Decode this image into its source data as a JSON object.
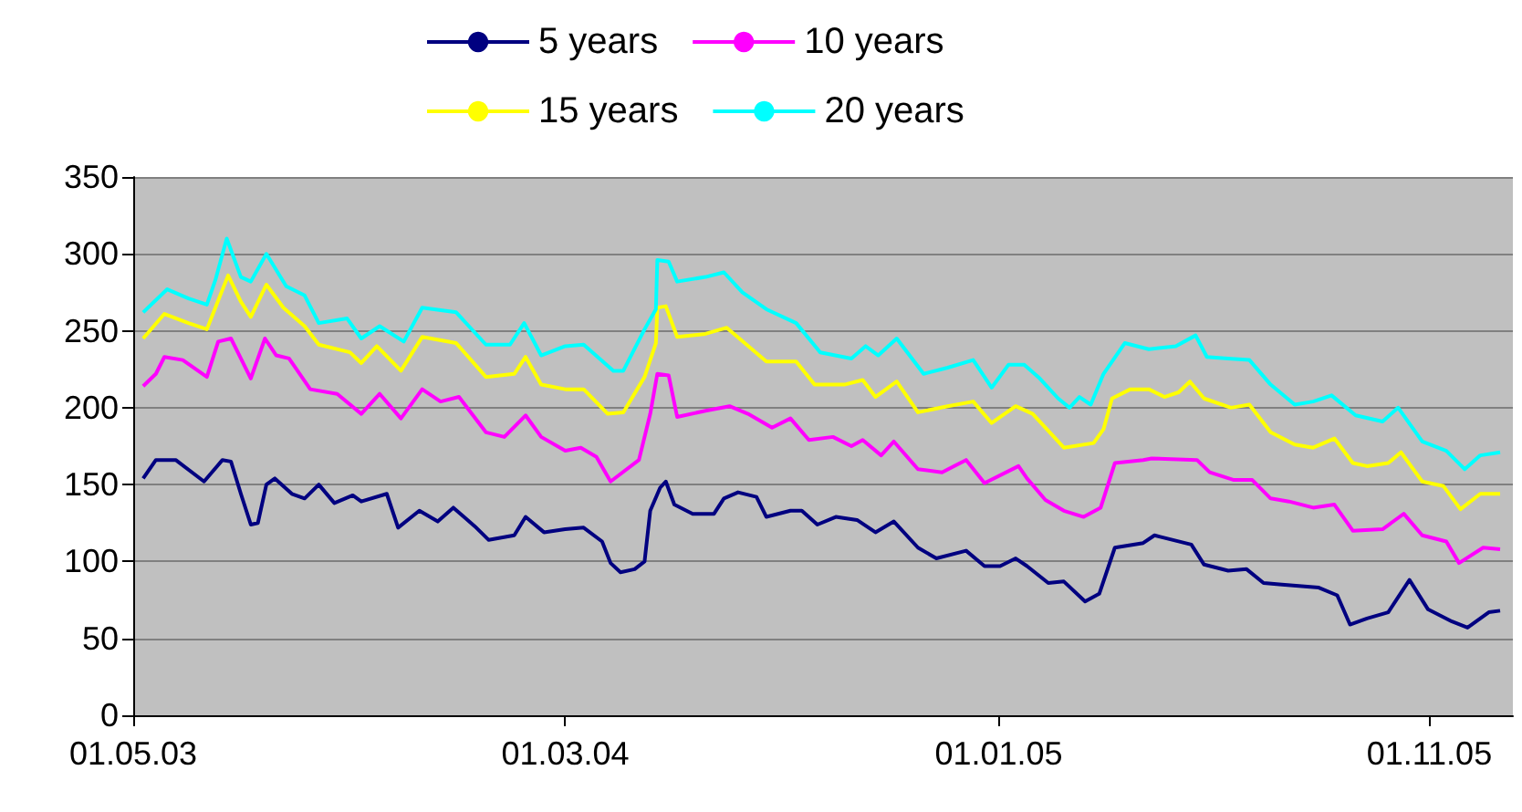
{
  "chart_data": {
    "type": "line",
    "xlim": [
      "2003-05-01",
      "2005-12-30"
    ],
    "xticks": [
      {
        "value": "2003-05-01",
        "label": "01.05.03"
      },
      {
        "value": "2004-03-01",
        "label": "01.03.04"
      },
      {
        "value": "2005-01-01",
        "label": "01.01.05"
      },
      {
        "value": "2005-11-01",
        "label": "01.11.05"
      }
    ],
    "ylim": [
      0,
      350
    ],
    "yticks": [
      0,
      50,
      100,
      150,
      200,
      250,
      300,
      350
    ],
    "grid": "y",
    "legend": "top",
    "series": [
      {
        "name": "5 years",
        "color": "#000080",
        "x": [
          "2003-05-08",
          "2003-05-17",
          "2003-05-31",
          "2003-06-20",
          "2003-07-03",
          "2003-07-09",
          "2003-07-16",
          "2003-07-23",
          "2003-07-28",
          "2003-08-03",
          "2003-08-09",
          "2003-08-21",
          "2003-08-30",
          "2003-09-09",
          "2003-09-20",
          "2003-10-03",
          "2003-10-09",
          "2003-10-27",
          "2003-11-04",
          "2003-11-19",
          "2003-12-02",
          "2003-12-13",
          "2003-12-28",
          "2004-01-07",
          "2004-01-25",
          "2004-02-02",
          "2004-02-15",
          "2004-03-01",
          "2004-03-14",
          "2004-03-27",
          "2004-04-02",
          "2004-04-09",
          "2004-04-19",
          "2004-04-26",
          "2004-04-30",
          "2004-05-07",
          "2004-05-11",
          "2004-05-17",
          "2004-05-30",
          "2004-06-14",
          "2004-06-21",
          "2004-07-01",
          "2004-07-14",
          "2004-07-21",
          "2004-08-07",
          "2004-08-15",
          "2004-08-26",
          "2004-09-08",
          "2004-09-23",
          "2004-10-06",
          "2004-10-19",
          "2004-11-05",
          "2004-11-18",
          "2004-12-09",
          "2004-12-22",
          "2005-01-02",
          "2005-01-13",
          "2005-01-21",
          "2005-02-05",
          "2005-02-16",
          "2005-03-03",
          "2005-03-13",
          "2005-03-24",
          "2005-04-13",
          "2005-04-21",
          "2005-05-17",
          "2005-05-26",
          "2005-06-12",
          "2005-06-25",
          "2005-07-07",
          "2005-07-20",
          "2005-08-15",
          "2005-08-28",
          "2005-09-06",
          "2005-09-18",
          "2005-10-03",
          "2005-10-18",
          "2005-10-31",
          "2005-11-17",
          "2005-11-28",
          "2005-12-13",
          "2005-12-21"
        ],
        "values": [
          154,
          166,
          166,
          152,
          166,
          165,
          144,
          124,
          125,
          150,
          154,
          144,
          141,
          150,
          138,
          143,
          139,
          144,
          122,
          133,
          126,
          135,
          123,
          114,
          117,
          129,
          119,
          121,
          122,
          113,
          99,
          93,
          95,
          100,
          133,
          148,
          152,
          137,
          131,
          131,
          141,
          145,
          142,
          129,
          133,
          133,
          124,
          129,
          127,
          119,
          126,
          109,
          102,
          107,
          97,
          97,
          102,
          97,
          86,
          87,
          74,
          79,
          109,
          112,
          117,
          111,
          98,
          94,
          95,
          86,
          85,
          83,
          78,
          59,
          63,
          67,
          88,
          69,
          61,
          57,
          67,
          68
        ]
      },
      {
        "name": "10 years",
        "color": "#ff00ff",
        "x": [
          "2003-05-08",
          "2003-05-17",
          "2003-05-23",
          "2003-06-05",
          "2003-06-22",
          "2003-06-30",
          "2003-07-09",
          "2003-07-23",
          "2003-08-02",
          "2003-08-10",
          "2003-08-19",
          "2003-09-03",
          "2003-09-22",
          "2003-10-09",
          "2003-10-22",
          "2003-11-06",
          "2003-11-21",
          "2003-12-04",
          "2003-12-17",
          "2004-01-05",
          "2004-01-18",
          "2004-02-02",
          "2004-02-13",
          "2004-03-01",
          "2004-03-12",
          "2004-03-23",
          "2004-04-02",
          "2004-04-22",
          "2004-04-30",
          "2004-05-05",
          "2004-05-13",
          "2004-05-19",
          "2004-06-08",
          "2004-06-25",
          "2004-07-08",
          "2004-07-25",
          "2004-08-07",
          "2004-08-20",
          "2004-09-06",
          "2004-09-19",
          "2004-09-27",
          "2004-10-10",
          "2004-10-19",
          "2004-11-05",
          "2004-11-22",
          "2004-12-09",
          "2004-12-22",
          "2005-01-15",
          "2005-01-21",
          "2005-02-03",
          "2005-02-16",
          "2005-03-02",
          "2005-03-14",
          "2005-03-24",
          "2005-04-13",
          "2005-04-19",
          "2005-05-21",
          "2005-05-30",
          "2005-06-16",
          "2005-06-29",
          "2005-07-12",
          "2005-07-25",
          "2005-08-11",
          "2005-08-26",
          "2005-09-08",
          "2005-09-29",
          "2005-10-14",
          "2005-10-27",
          "2005-11-13",
          "2005-11-22",
          "2005-12-09",
          "2005-12-21"
        ],
        "values": [
          214,
          222,
          233,
          231,
          220,
          243,
          245,
          219,
          245,
          234,
          232,
          212,
          209,
          196,
          209,
          193,
          212,
          204,
          207,
          184,
          181,
          195,
          181,
          172,
          174,
          168,
          152,
          166,
          196,
          222,
          221,
          194,
          198,
          201,
          196,
          187,
          193,
          179,
          181,
          175,
          179,
          169,
          178,
          160,
          158,
          166,
          151,
          162,
          154,
          140,
          133,
          129,
          135,
          164,
          166,
          167,
          166,
          158,
          153,
          153,
          141,
          139,
          135,
          137,
          120,
          121,
          131,
          117,
          113,
          99,
          109,
          108
        ]
      },
      {
        "name": "15 years",
        "color": "#ffff00",
        "x": [
          "2003-05-08",
          "2003-05-23",
          "2003-06-09",
          "2003-06-22",
          "2003-06-28",
          "2003-07-07",
          "2003-07-16",
          "2003-07-23",
          "2003-08-03",
          "2003-08-15",
          "2003-08-30",
          "2003-09-09",
          "2003-10-01",
          "2003-10-09",
          "2003-10-20",
          "2003-11-06",
          "2003-11-21",
          "2003-12-15",
          "2004-01-05",
          "2004-01-25",
          "2004-02-02",
          "2004-02-13",
          "2004-03-01",
          "2004-03-14",
          "2004-03-31",
          "2004-04-11",
          "2004-04-26",
          "2004-05-04",
          "2004-05-05",
          "2004-05-11",
          "2004-05-19",
          "2004-06-08",
          "2004-06-23",
          "2004-07-21",
          "2004-08-11",
          "2004-08-24",
          "2004-09-14",
          "2004-09-27",
          "2004-10-06",
          "2004-10-21",
          "2004-11-05",
          "2004-11-26",
          "2004-12-14",
          "2004-12-27",
          "2005-01-13",
          "2005-01-25",
          "2005-02-16",
          "2005-03-09",
          "2005-03-16",
          "2005-03-22",
          "2005-04-04",
          "2005-04-17",
          "2005-04-28",
          "2005-05-08",
          "2005-05-16",
          "2005-05-26",
          "2005-06-14",
          "2005-06-27",
          "2005-07-12",
          "2005-07-29",
          "2005-08-11",
          "2005-08-26",
          "2005-09-08",
          "2005-09-18",
          "2005-10-03",
          "2005-10-12",
          "2005-10-27",
          "2005-11-11",
          "2005-11-23",
          "2005-12-07",
          "2005-12-21"
        ],
        "values": [
          245,
          261,
          255,
          251,
          265,
          286,
          269,
          259,
          280,
          265,
          253,
          241,
          236,
          229,
          240,
          224,
          246,
          242,
          220,
          222,
          233,
          215,
          212,
          212,
          196,
          197,
          220,
          242,
          265,
          266,
          246,
          248,
          252,
          230,
          230,
          215,
          215,
          218,
          207,
          217,
          197,
          201,
          204,
          190,
          201,
          196,
          174,
          177,
          186,
          206,
          212,
          212,
          207,
          210,
          217,
          206,
          200,
          202,
          184,
          176,
          174,
          180,
          164,
          162,
          164,
          171,
          152,
          149,
          134,
          144,
          144
        ]
      },
      {
        "name": "20 years",
        "color": "#00ffff",
        "x": [
          "2003-05-08",
          "2003-05-25",
          "2003-06-09",
          "2003-06-22",
          "2003-06-28",
          "2003-07-06",
          "2003-07-16",
          "2003-07-23",
          "2003-08-03",
          "2003-08-17",
          "2003-08-30",
          "2003-09-09",
          "2003-09-29",
          "2003-10-09",
          "2003-10-22",
          "2003-11-08",
          "2003-11-21",
          "2003-12-15",
          "2004-01-05",
          "2004-01-22",
          "2004-02-01",
          "2004-02-13",
          "2004-03-01",
          "2004-03-14",
          "2004-04-04",
          "2004-04-11",
          "2004-04-26",
          "2004-05-04",
          "2004-05-05",
          "2004-05-13",
          "2004-05-19",
          "2004-06-08",
          "2004-06-21",
          "2004-07-04",
          "2004-07-21",
          "2004-08-11",
          "2004-08-28",
          "2004-09-19",
          "2004-09-29",
          "2004-10-08",
          "2004-10-21",
          "2004-11-09",
          "2004-11-26",
          "2004-12-14",
          "2004-12-27",
          "2005-01-08",
          "2005-01-19",
          "2005-01-30",
          "2005-02-12",
          "2005-02-20",
          "2005-02-27",
          "2005-03-07",
          "2005-03-16",
          "2005-03-31",
          "2005-04-17",
          "2005-05-06",
          "2005-05-20",
          "2005-05-28",
          "2005-06-12",
          "2005-06-27",
          "2005-07-12",
          "2005-07-29",
          "2005-08-11",
          "2005-08-24",
          "2005-09-10",
          "2005-09-29",
          "2005-10-10",
          "2005-10-27",
          "2005-11-13",
          "2005-11-26",
          "2005-12-07",
          "2005-12-21"
        ],
        "values": [
          262,
          277,
          271,
          267,
          283,
          310,
          285,
          282,
          300,
          279,
          273,
          255,
          258,
          245,
          253,
          243,
          265,
          262,
          241,
          241,
          255,
          234,
          240,
          241,
          224,
          224,
          251,
          264,
          296,
          295,
          282,
          285,
          288,
          275,
          264,
          255,
          236,
          232,
          240,
          234,
          245,
          222,
          226,
          231,
          213,
          228,
          228,
          219,
          206,
          200,
          207,
          202,
          222,
          242,
          238,
          240,
          247,
          233,
          232,
          231,
          215,
          202,
          204,
          208,
          195,
          191,
          200,
          178,
          172,
          160,
          169,
          171
        ]
      }
    ]
  }
}
